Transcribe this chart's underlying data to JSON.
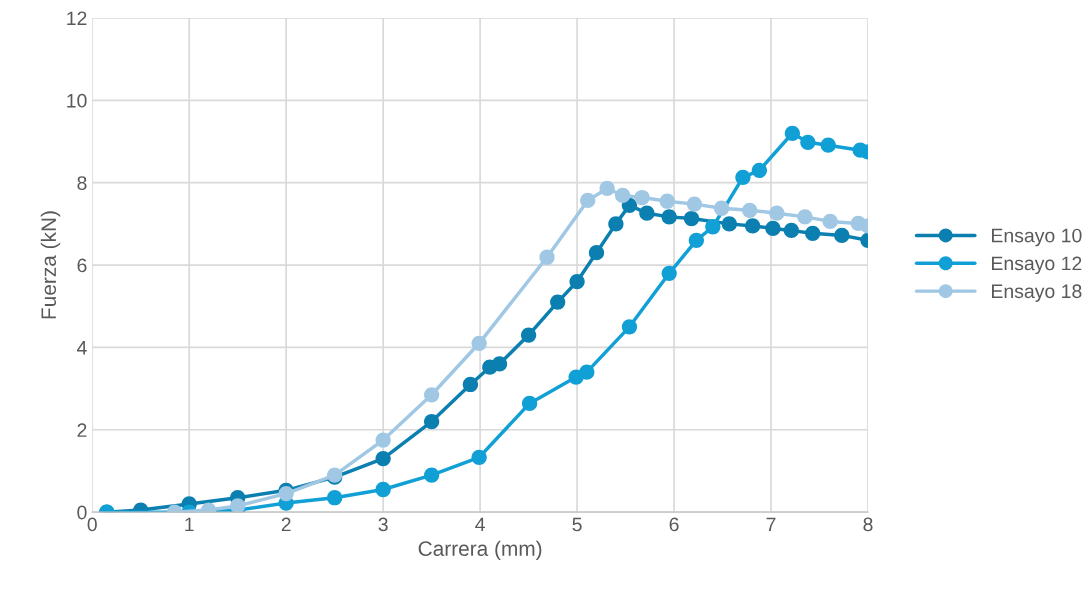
{
  "chart_data": {
    "type": "line",
    "xlabel": "Carrera (mm)",
    "ylabel": "Fuerza (kN)",
    "xlim": [
      0,
      8
    ],
    "xticks": [
      0,
      1,
      2,
      3,
      4,
      5,
      6,
      7,
      8
    ],
    "ylim": [
      0,
      12
    ],
    "yticks": [
      0,
      2,
      4,
      6,
      8,
      10,
      12
    ],
    "grid": true,
    "legend": "right",
    "marker": "circle",
    "line_style": "solid",
    "series": [
      {
        "name": "Ensayo 10",
        "color": "#0a7fb0",
        "x": [
          0.15,
          0.5,
          1,
          1.5,
          2,
          2.5,
          3,
          3.5,
          3.9,
          4.1,
          4.2,
          4.5,
          4.8,
          5.0,
          5.2,
          5.4,
          5.54,
          5.72,
          5.95,
          6.18,
          6.57,
          6.81,
          7.02,
          7.21,
          7.43,
          7.73,
          8.0
        ],
        "values": [
          0,
          0.05,
          0.2,
          0.35,
          0.53,
          0.85,
          1.3,
          2.2,
          3.1,
          3.52,
          3.6,
          4.3,
          5.1,
          5.6,
          6.3,
          7.0,
          7.45,
          7.26,
          7.17,
          7.13,
          7.0,
          6.95,
          6.89,
          6.84,
          6.77,
          6.72,
          6.6
        ]
      },
      {
        "name": "Ensayo 12",
        "color": "#11a0d6",
        "x": [
          0.15,
          1,
          1.5,
          2,
          2.5,
          3,
          3.5,
          3.99,
          4.51,
          4.99,
          5.1,
          5.54,
          5.95,
          6.23,
          6.4,
          6.71,
          6.88,
          7.22,
          7.38,
          7.59,
          7.92,
          8.0
        ],
        "values": [
          0,
          0,
          0.05,
          0.22,
          0.35,
          0.55,
          0.9,
          1.33,
          2.64,
          3.28,
          3.4,
          4.5,
          5.8,
          6.6,
          6.93,
          8.13,
          8.3,
          9.2,
          8.98,
          8.91,
          8.79,
          8.75
        ]
      },
      {
        "name": "Ensayo 18",
        "color": "#a0c8e4",
        "x": [
          0.85,
          1.2,
          1.5,
          2,
          2.5,
          3,
          3.5,
          3.99,
          4.69,
          5.11,
          5.31,
          5.47,
          5.67,
          5.93,
          6.21,
          6.49,
          6.78,
          7.06,
          7.35,
          7.61,
          7.9,
          8.0
        ],
        "values": [
          0,
          0.05,
          0.15,
          0.45,
          0.9,
          1.75,
          2.85,
          4.1,
          6.19,
          7.57,
          7.86,
          7.69,
          7.64,
          7.55,
          7.48,
          7.38,
          7.33,
          7.26,
          7.17,
          7.06,
          7.01,
          6.95
        ]
      }
    ]
  }
}
